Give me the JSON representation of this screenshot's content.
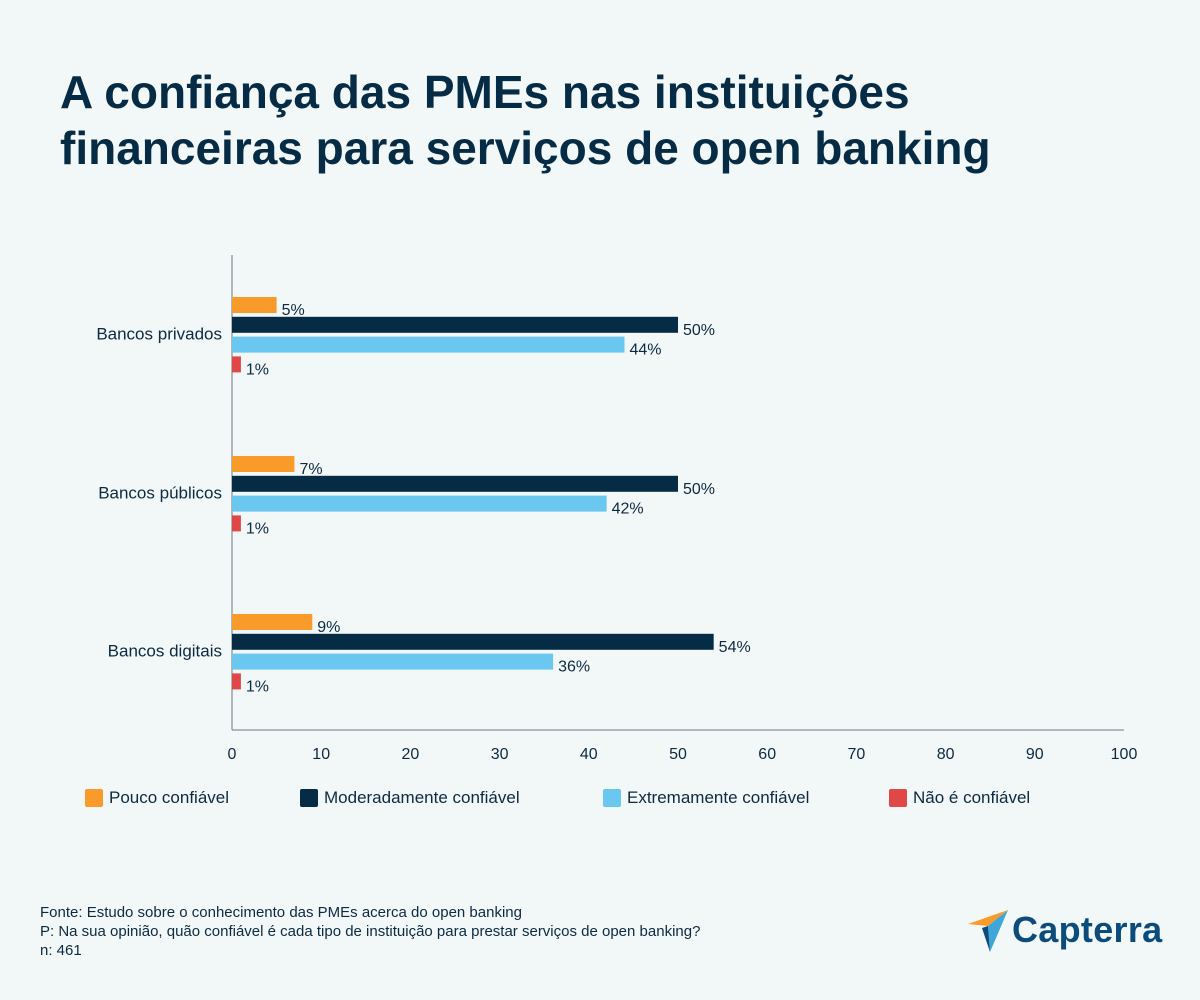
{
  "title": {
    "line1": "A confiança das PMEs nas instituições",
    "line2": "financeiras para serviços de open banking"
  },
  "chart_data": {
    "type": "bar",
    "orientation": "horizontal",
    "categories": [
      "Bancos privados",
      "Bancos públicos",
      "Bancos digitais"
    ],
    "series": [
      {
        "name": "Pouco confiável",
        "color": "#f89b2a",
        "values": [
          5,
          7,
          9
        ]
      },
      {
        "name": "Moderadamente confiável",
        "color": "#062b44",
        "values": [
          50,
          50,
          54
        ]
      },
      {
        "name": "Extremamente confiável",
        "color": "#6ac7ef",
        "values": [
          44,
          42,
          36
        ]
      },
      {
        "name": "Não é confiável",
        "color": "#e04848",
        "values": [
          1,
          1,
          1
        ]
      }
    ],
    "value_suffix": "%",
    "xlim": [
      0,
      100
    ],
    "xticks": [
      0,
      10,
      20,
      30,
      40,
      50,
      60,
      70,
      80,
      90,
      100
    ],
    "grid": false,
    "legend_position": "bottom"
  },
  "footer": {
    "source": "Fonte: Estudo sobre o conhecimento das PMEs acerca do open banking",
    "question": "P: Na sua opinião, quão confiável é cada tipo de instituição para prestar serviços de open banking?",
    "sample": "n: 461"
  },
  "logo": {
    "text": "Capterra",
    "colors": {
      "orange": "#f89b2a",
      "blue": "#3ea6d9",
      "navy": "#0c4c7c"
    }
  }
}
